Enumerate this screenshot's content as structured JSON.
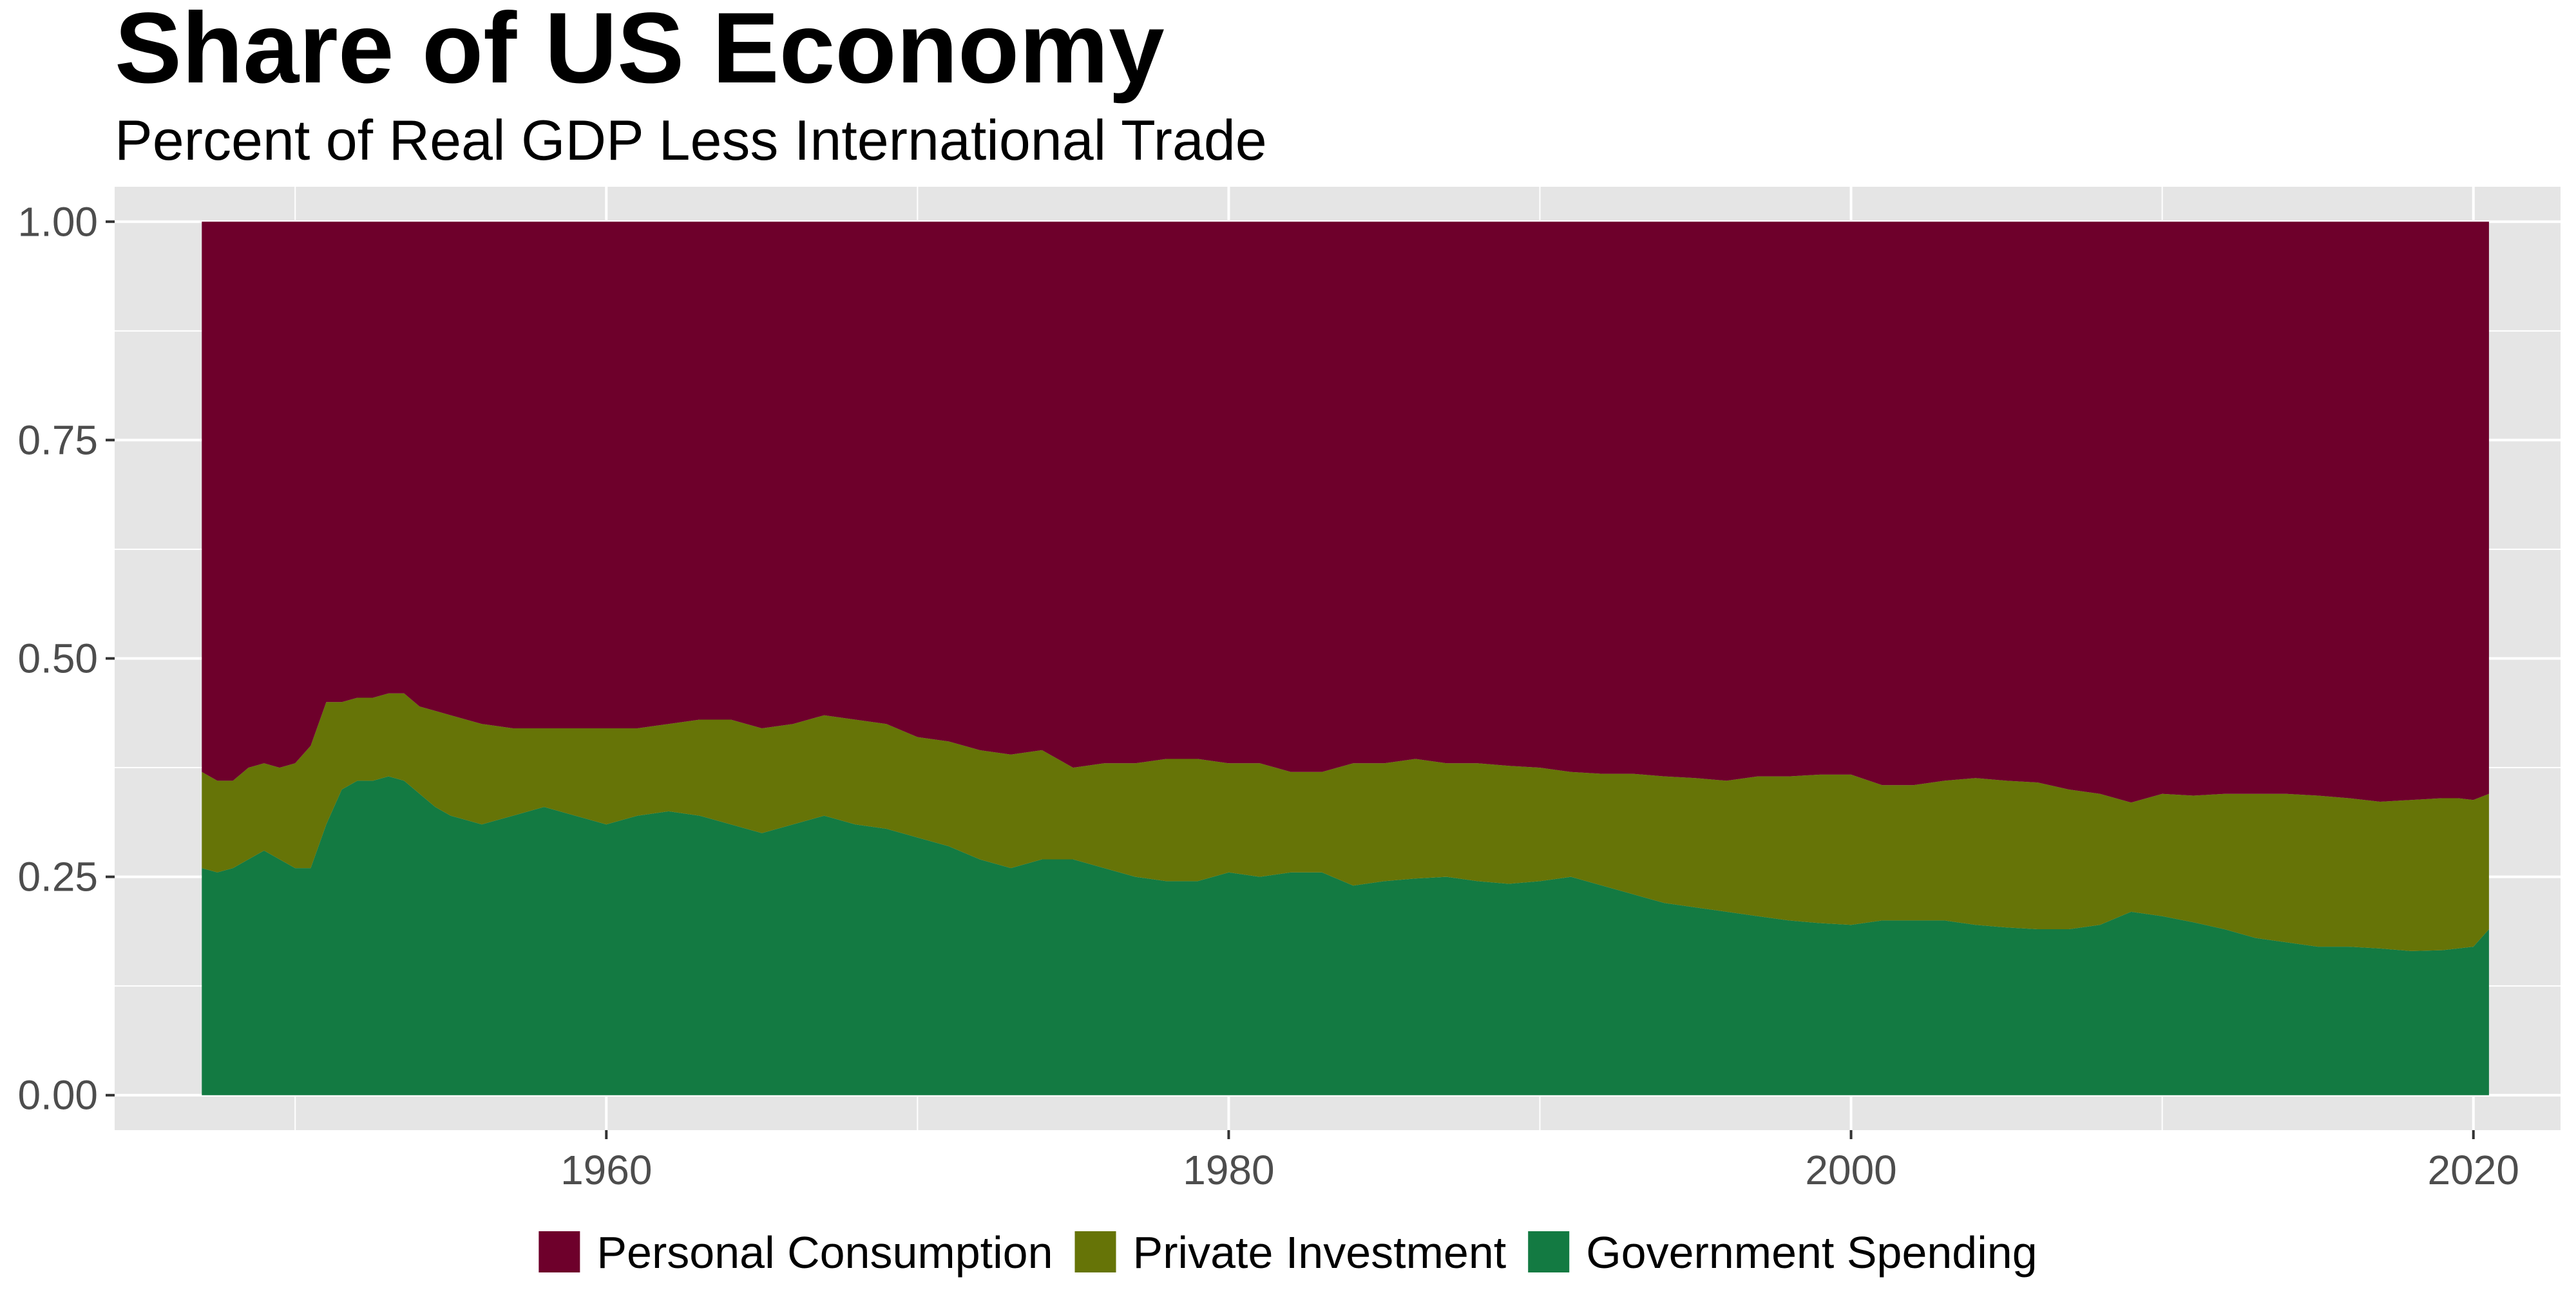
{
  "chart_data": {
    "type": "area",
    "stacked": true,
    "title": "Share of US Economy",
    "subtitle": "Percent of Real GDP Less International Trade",
    "xlabel": "",
    "ylabel": "",
    "xlim": [
      1944.2,
      2022.8
    ],
    "ylim": [
      -0.04,
      1.04
    ],
    "x_ticks": [
      1960,
      1980,
      2000,
      2020
    ],
    "x_tick_labels": [
      "1960",
      "1980",
      "2000",
      "2020"
    ],
    "y_ticks": [
      0,
      0.25,
      0.5,
      0.75,
      1.0
    ],
    "y_tick_labels": [
      "0.00",
      "0.25",
      "0.50",
      "0.75",
      "1.00"
    ],
    "grid": true,
    "legend_position": "bottom",
    "background_color": "#e5e5e5",
    "grid_color": "#ffffff",
    "x": [
      1947.0,
      1947.5,
      1948.0,
      1948.5,
      1949.0,
      1949.5,
      1950.0,
      1950.5,
      1951.0,
      1951.5,
      1952.0,
      1952.5,
      1953.0,
      1953.5,
      1954.0,
      1954.5,
      1955.0,
      1956.0,
      1957.0,
      1958.0,
      1959.0,
      1960.0,
      1961.0,
      1962.0,
      1963.0,
      1964.0,
      1965.0,
      1966.0,
      1967.0,
      1968.0,
      1969.0,
      1970.0,
      1971.0,
      1972.0,
      1973.0,
      1974.0,
      1975.0,
      1976.0,
      1977.0,
      1978.0,
      1979.0,
      1980.0,
      1981.0,
      1982.0,
      1983.0,
      1984.0,
      1985.0,
      1986.0,
      1987.0,
      1988.0,
      1989.0,
      1990.0,
      1991.0,
      1992.0,
      1993.0,
      1994.0,
      1995.0,
      1996.0,
      1997.0,
      1998.0,
      1999.0,
      2000.0,
      2001.0,
      2002.0,
      2003.0,
      2004.0,
      2005.0,
      2006.0,
      2007.0,
      2008.0,
      2009.0,
      2010.0,
      2011.0,
      2012.0,
      2013.0,
      2014.0,
      2015.0,
      2016.0,
      2017.0,
      2018.0,
      2019.0,
      2019.5,
      2020.0,
      2020.5
    ],
    "series": [
      {
        "name": "Government Spending",
        "color": "#137a42",
        "values": [
          0.26,
          0.255,
          0.26,
          0.27,
          0.28,
          0.27,
          0.26,
          0.26,
          0.31,
          0.35,
          0.36,
          0.36,
          0.365,
          0.36,
          0.345,
          0.33,
          0.32,
          0.31,
          0.32,
          0.33,
          0.32,
          0.31,
          0.32,
          0.325,
          0.32,
          0.31,
          0.3,
          0.31,
          0.32,
          0.31,
          0.305,
          0.295,
          0.285,
          0.27,
          0.26,
          0.27,
          0.27,
          0.26,
          0.25,
          0.245,
          0.245,
          0.255,
          0.25,
          0.255,
          0.255,
          0.24,
          0.245,
          0.248,
          0.25,
          0.245,
          0.242,
          0.245,
          0.25,
          0.24,
          0.23,
          0.22,
          0.215,
          0.21,
          0.205,
          0.2,
          0.197,
          0.195,
          0.2,
          0.2,
          0.2,
          0.195,
          0.192,
          0.19,
          0.19,
          0.195,
          0.21,
          0.205,
          0.198,
          0.19,
          0.18,
          0.175,
          0.17,
          0.17,
          0.168,
          0.165,
          0.166,
          0.168,
          0.17,
          0.19
        ]
      },
      {
        "name": "Private Investment",
        "color": "#667407",
        "values": [
          0.11,
          0.105,
          0.1,
          0.105,
          0.1,
          0.105,
          0.12,
          0.14,
          0.14,
          0.1,
          0.095,
          0.095,
          0.095,
          0.1,
          0.1,
          0.11,
          0.115,
          0.115,
          0.1,
          0.09,
          0.1,
          0.11,
          0.1,
          0.1,
          0.11,
          0.12,
          0.12,
          0.115,
          0.115,
          0.12,
          0.12,
          0.115,
          0.12,
          0.125,
          0.13,
          0.125,
          0.105,
          0.12,
          0.13,
          0.14,
          0.14,
          0.125,
          0.13,
          0.115,
          0.115,
          0.14,
          0.135,
          0.137,
          0.13,
          0.135,
          0.135,
          0.13,
          0.12,
          0.128,
          0.138,
          0.145,
          0.148,
          0.15,
          0.16,
          0.165,
          0.17,
          0.172,
          0.155,
          0.155,
          0.16,
          0.168,
          0.168,
          0.168,
          0.16,
          0.15,
          0.125,
          0.14,
          0.145,
          0.155,
          0.165,
          0.17,
          0.173,
          0.17,
          0.168,
          0.173,
          0.174,
          0.172,
          0.168,
          0.155
        ]
      },
      {
        "name": "Personal Consumption",
        "color": "#6e002b",
        "values": [
          0.63,
          0.64,
          0.64,
          0.625,
          0.62,
          0.625,
          0.62,
          0.6,
          0.55,
          0.55,
          0.545,
          0.545,
          0.54,
          0.54,
          0.555,
          0.56,
          0.565,
          0.575,
          0.58,
          0.58,
          0.58,
          0.58,
          0.58,
          0.575,
          0.57,
          0.57,
          0.58,
          0.575,
          0.565,
          0.57,
          0.575,
          0.59,
          0.595,
          0.605,
          0.61,
          0.605,
          0.625,
          0.62,
          0.62,
          0.615,
          0.615,
          0.62,
          0.62,
          0.63,
          0.63,
          0.62,
          0.62,
          0.615,
          0.62,
          0.62,
          0.623,
          0.625,
          0.63,
          0.632,
          0.632,
          0.635,
          0.637,
          0.64,
          0.635,
          0.635,
          0.633,
          0.633,
          0.645,
          0.645,
          0.64,
          0.637,
          0.64,
          0.642,
          0.65,
          0.655,
          0.665,
          0.655,
          0.657,
          0.655,
          0.655,
          0.655,
          0.657,
          0.66,
          0.664,
          0.662,
          0.66,
          0.66,
          0.662,
          0.655
        ]
      }
    ],
    "legend_order": [
      "Personal Consumption",
      "Private Investment",
      "Government Spending"
    ]
  }
}
